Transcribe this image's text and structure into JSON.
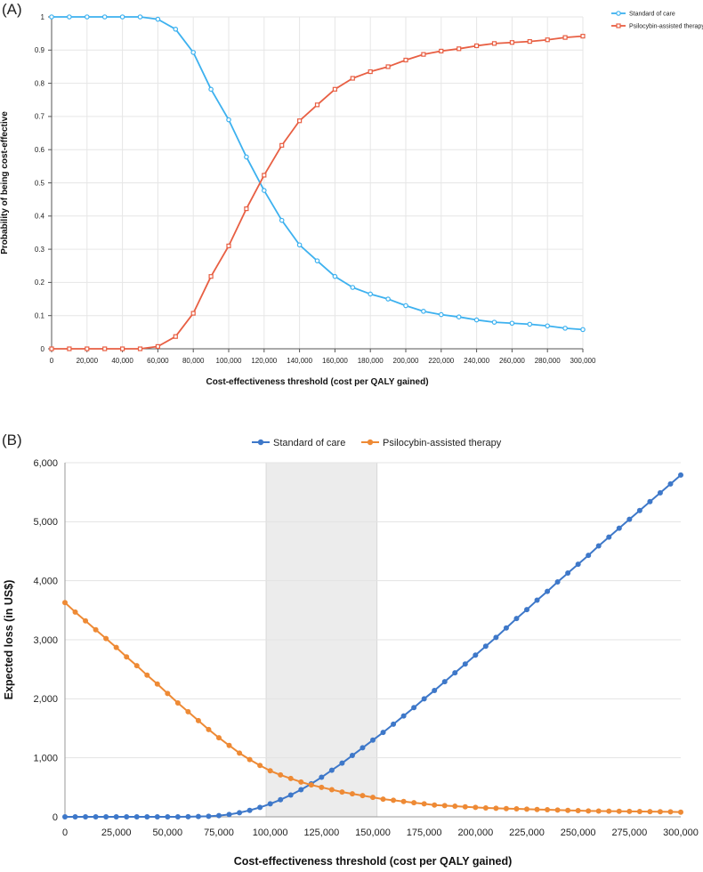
{
  "panel_labels": {
    "a": "(A)",
    "b": "(B)"
  },
  "chart_data": [
    {
      "type": "line",
      "panel": "(A)",
      "xlabel": "Cost-effectiveness threshold (cost per QALY gained)",
      "ylabel": "Probability of being cost-effective",
      "xlim": [
        0,
        300000
      ],
      "ylim": [
        0,
        1
      ],
      "x_ticks": [
        "0",
        "20,000",
        "40,000",
        "60,000",
        "80,000",
        "100,000",
        "120,000",
        "140,000",
        "160,000",
        "180,000",
        "200,000",
        "220,000",
        "240,000",
        "260,000",
        "280,000",
        "300,000"
      ],
      "y_ticks": [
        "0",
        "0.1",
        "0.2",
        "0.3",
        "0.4",
        "0.5",
        "0.6",
        "0.7",
        "0.8",
        "0.9",
        "1"
      ],
      "grid": true,
      "legend_position": "top-right",
      "x": [
        0,
        10000,
        20000,
        30000,
        40000,
        50000,
        60000,
        70000,
        80000,
        90000,
        100000,
        110000,
        120000,
        130000,
        140000,
        150000,
        160000,
        170000,
        180000,
        190000,
        200000,
        210000,
        220000,
        230000,
        240000,
        250000,
        260000,
        270000,
        280000,
        290000,
        300000
      ],
      "series": [
        {
          "name": "Standard of care",
          "color": "#3db1ef",
          "marker": "circle-open",
          "values": [
            1,
            1,
            1,
            1,
            1,
            1,
            0.993,
            0.963,
            0.893,
            0.782,
            0.69,
            0.578,
            0.477,
            0.387,
            0.313,
            0.265,
            0.218,
            0.185,
            0.165,
            0.15,
            0.13,
            0.113,
            0.103,
            0.096,
            0.087,
            0.08,
            0.077,
            0.074,
            0.069,
            0.062,
            0.058
          ]
        },
        {
          "name": "Psilocybin-assisted therapy",
          "color": "#e85f43",
          "marker": "square-open",
          "values": [
            0,
            0,
            0,
            0,
            0,
            0,
            0.007,
            0.037,
            0.107,
            0.218,
            0.31,
            0.422,
            0.523,
            0.613,
            0.687,
            0.735,
            0.782,
            0.815,
            0.835,
            0.85,
            0.87,
            0.887,
            0.897,
            0.904,
            0.913,
            0.92,
            0.923,
            0.926,
            0.931,
            0.938,
            0.942
          ]
        }
      ]
    },
    {
      "type": "line",
      "panel": "(B)",
      "xlabel": "Cost-effectiveness threshold (cost per QALY gained)",
      "ylabel": "Expected loss (in US$)",
      "xlim": [
        0,
        300000
      ],
      "ylim": [
        0,
        6000
      ],
      "x_ticks": [
        "0",
        "25,000",
        "50,000",
        "75,000",
        "100,000",
        "125,000",
        "150,000",
        "175,000",
        "200,000",
        "225,000",
        "250,000",
        "275,000",
        "300,000"
      ],
      "y_ticks": [
        "0",
        "1,000",
        "2,000",
        "3,000",
        "4,000",
        "5,000",
        "6,000"
      ],
      "grid": true,
      "legend_position": "top-center",
      "shaded_region": [
        98000,
        152000
      ],
      "x": [
        0,
        5000,
        10000,
        15000,
        20000,
        25000,
        30000,
        35000,
        40000,
        45000,
        50000,
        55000,
        60000,
        65000,
        70000,
        75000,
        80000,
        85000,
        90000,
        95000,
        100000,
        105000,
        110000,
        115000,
        120000,
        125000,
        130000,
        135000,
        140000,
        145000,
        150000,
        155000,
        160000,
        165000,
        170000,
        175000,
        180000,
        185000,
        190000,
        195000,
        200000,
        205000,
        210000,
        215000,
        220000,
        225000,
        230000,
        235000,
        240000,
        245000,
        250000,
        255000,
        260000,
        265000,
        270000,
        275000,
        280000,
        285000,
        290000,
        295000,
        300000
      ],
      "series": [
        {
          "name": "Standard of care",
          "color": "#3e78c9",
          "marker": "circle-filled",
          "values": [
            0,
            0,
            0,
            0,
            0,
            0,
            0,
            0,
            0,
            0,
            0,
            0,
            2,
            5,
            10,
            20,
            40,
            70,
            110,
            160,
            220,
            290,
            370,
            460,
            560,
            670,
            790,
            910,
            1040,
            1170,
            1300,
            1430,
            1570,
            1710,
            1850,
            2000,
            2140,
            2290,
            2440,
            2590,
            2740,
            2890,
            3040,
            3200,
            3360,
            3510,
            3670,
            3820,
            3980,
            4130,
            4280,
            4430,
            4590,
            4740,
            4890,
            5040,
            5190,
            5340,
            5490,
            5640,
            5790
          ]
        },
        {
          "name": "Psilocybin-assisted therapy",
          "color": "#ee8a35",
          "marker": "circle-filled",
          "values": [
            3630,
            3470,
            3320,
            3170,
            3020,
            2870,
            2710,
            2560,
            2400,
            2250,
            2090,
            1930,
            1780,
            1630,
            1480,
            1340,
            1210,
            1080,
            970,
            870,
            780,
            710,
            650,
            590,
            540,
            500,
            460,
            420,
            390,
            360,
            330,
            300,
            280,
            260,
            240,
            220,
            200,
            190,
            180,
            170,
            160,
            150,
            145,
            140,
            135,
            130,
            125,
            120,
            115,
            110,
            105,
            100,
            98,
            96,
            94,
            92,
            90,
            88,
            86,
            84,
            80
          ]
        }
      ]
    }
  ]
}
